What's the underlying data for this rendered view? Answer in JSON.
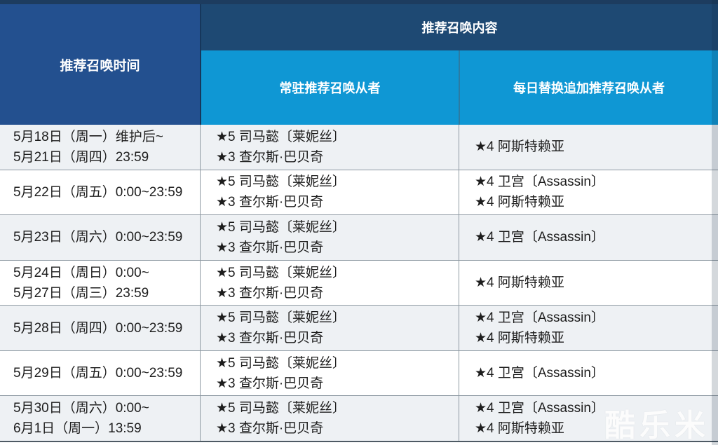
{
  "header": {
    "time_column": "推荐召唤时间",
    "content_group": "推荐召唤内容",
    "permanent_column": "常驻推荐召唤从者",
    "daily_column": "每日替换追加推荐召唤从者"
  },
  "rows": [
    {
      "time": [
        "5月18日（周一）维护后~",
        "5月21日（周四）23:59"
      ],
      "permanent": [
        "★5 司马懿〔莱妮丝〕",
        "★3 查尔斯·巴贝奇"
      ],
      "daily": [
        "★4 阿斯特赖亚"
      ]
    },
    {
      "time": [
        "5月22日（周五）0:00~23:59"
      ],
      "permanent": [
        "★5 司马懿〔莱妮丝〕",
        "★3 查尔斯·巴贝奇"
      ],
      "daily": [
        "★4 卫宫〔Assassin〕",
        "★4 阿斯特赖亚"
      ]
    },
    {
      "time": [
        "5月23日（周六）0:00~23:59"
      ],
      "permanent": [
        "★5 司马懿〔莱妮丝〕",
        "★3 查尔斯·巴贝奇"
      ],
      "daily": [
        "★4 卫宫〔Assassin〕"
      ]
    },
    {
      "time": [
        "5月24日（周日）0:00~",
        "5月27日（周三）23:59"
      ],
      "permanent": [
        "★5 司马懿〔莱妮丝〕",
        "★3 查尔斯·巴贝奇"
      ],
      "daily": [
        "★4 阿斯特赖亚"
      ]
    },
    {
      "time": [
        "5月28日（周四）0:00~23:59"
      ],
      "permanent": [
        "★5 司马懿〔莱妮丝〕",
        "★3 查尔斯·巴贝奇"
      ],
      "daily": [
        "★4 卫宫〔Assassin〕",
        "★4 阿斯特赖亚"
      ]
    },
    {
      "time": [
        "5月29日（周五）0:00~23:59"
      ],
      "permanent": [
        "★5 司马懿〔莱妮丝〕",
        "★3 查尔斯·巴贝奇"
      ],
      "daily": [
        "★4 卫宫〔Assassin〕"
      ]
    },
    {
      "time": [
        "5月30日（周六）0:00~",
        "6月1日（周一）13:59"
      ],
      "permanent": [
        "★5 司马懿〔莱妮丝〕",
        "★3 查尔斯·巴贝奇"
      ],
      "daily": [
        "★4 卫宫〔Assassin〕",
        "★4 阿斯特赖亚"
      ]
    }
  ],
  "watermark": "酷乐米",
  "colors": {
    "top_strip": "#1d3c5f",
    "time_header_bg": "#23508f",
    "content_header_bg": "#1e4973",
    "sub_header_bg": "#0f97d4",
    "alt_row_bg": "#eef1f4",
    "border": "#8e99a2",
    "text": "#1d1d1d"
  }
}
